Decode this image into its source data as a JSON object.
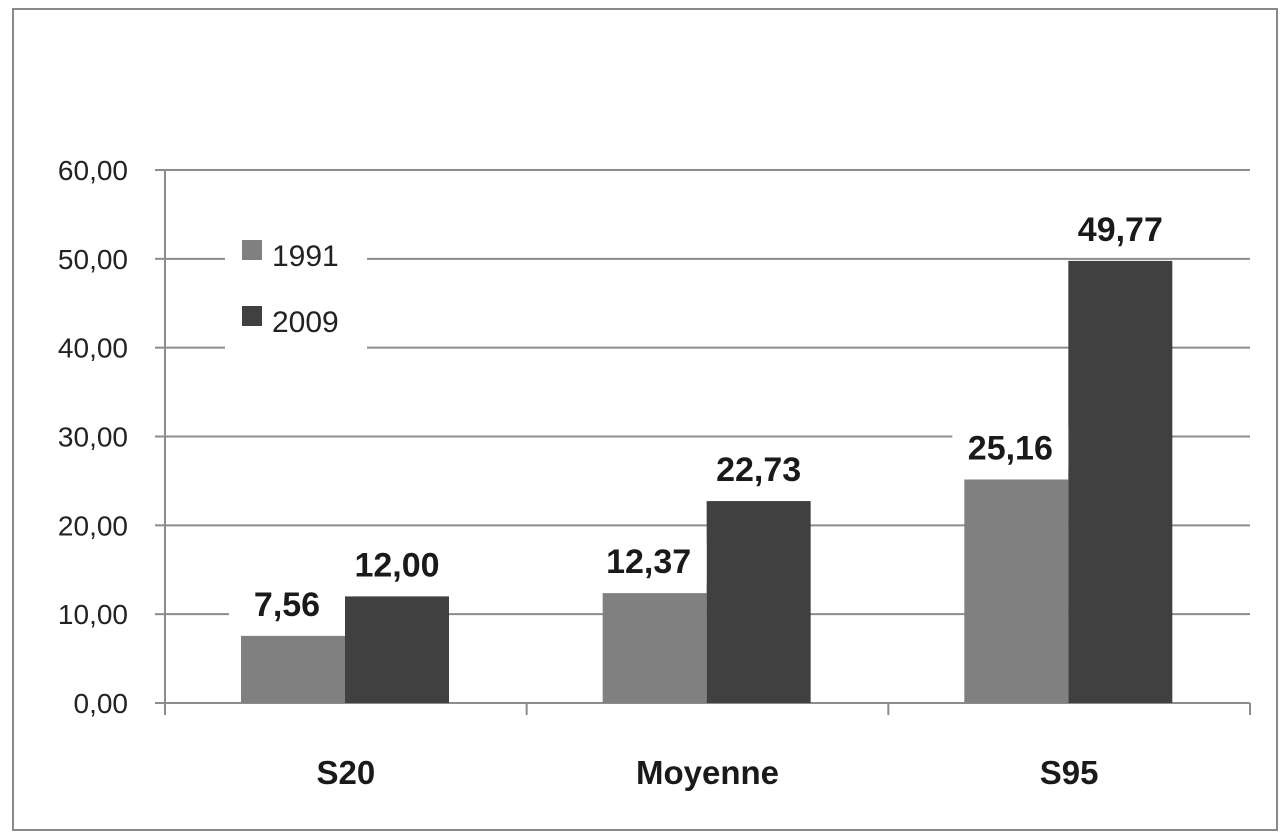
{
  "chart_data": {
    "type": "bar",
    "categories": [
      "S20",
      "Moyenne",
      "S95"
    ],
    "series": [
      {
        "name": "1991",
        "values": [
          7.56,
          12.37,
          25.16
        ],
        "labels": [
          "7,56",
          "12,37",
          "25,16"
        ],
        "color": "#808080"
      },
      {
        "name": "2009",
        "values": [
          12.0,
          22.73,
          49.77
        ],
        "labels": [
          "12,00",
          "22,73",
          "49,77"
        ],
        "color": "#404040"
      }
    ],
    "yticks": [
      "0,00",
      "10,00",
      "20,00",
      "30,00",
      "40,00",
      "50,00",
      "60,00"
    ],
    "ylim": [
      0,
      60
    ],
    "grid": true,
    "legend_position": "top-left"
  }
}
